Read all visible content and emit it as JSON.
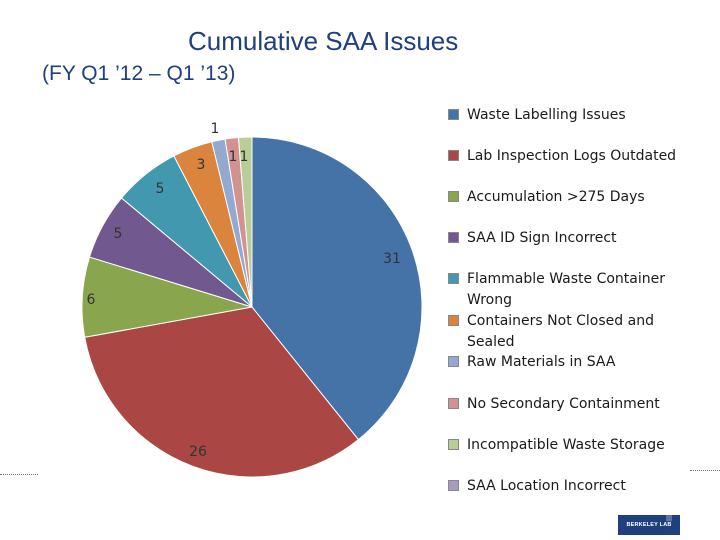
{
  "header": {
    "title": "Cumulative SAA Issues",
    "subtitle": "(FY Q1 ’12 – Q1 ’13)"
  },
  "chart_data": {
    "type": "pie",
    "title": "Cumulative SAA Issues",
    "subtitle": "(FY Q1 ’12 – Q1 ’13)",
    "categories": [
      "Waste Labelling Issues",
      "Lab Inspection Logs Outdated",
      "Accumulation >275  Days",
      "SAA ID Sign  Incorrect",
      "Flammable Waste Container Wrong",
      "Containers Not Closed and Sealed",
      "Raw Materials in SAA",
      "No Secondary Containment",
      "Incompatible Waste Storage",
      "SAA Location Incorrect"
    ],
    "values": [
      31,
      26,
      6,
      5,
      5,
      3,
      1,
      1,
      1,
      0
    ],
    "labels": [
      "31",
      "26",
      "6",
      "5",
      "5",
      "3",
      "1",
      "1",
      "1"
    ],
    "colors": [
      "#4572a7",
      "#aa4643",
      "#89a54e",
      "#71588f",
      "#4198af",
      "#db843d",
      "#93a9cf",
      "#d19392",
      "#b9cd96",
      "#a99bbd"
    ],
    "legend_position": "right"
  },
  "footer": {
    "logo_text": "BERKELEY LAB",
    "logo_mark": "|||"
  }
}
